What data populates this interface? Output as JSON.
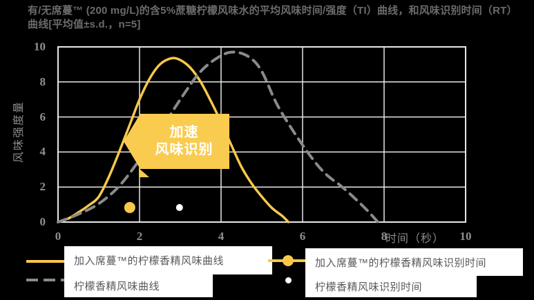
{
  "title": "有/无席蔓™ (200 mg/L)的含5%蔗糖柠檬风味水的平均风味时间/强度（TI）曲线，和风味识别时间（RT）曲线[平均值±s.d.，n=5]",
  "colors": {
    "background": "#000000",
    "accent_yellow": "#F9C84B",
    "banner_yellow": "#F9CB4F",
    "curve_gray": "#8A8A8A",
    "grid": "#E8E8E8",
    "tick_text": "#8F8F8F",
    "title_text": "#6B6B6B",
    "legend_text": "#595959"
  },
  "chart_data": {
    "type": "line",
    "title": "有/无席蔓™ (200 mg/L)的含5%蔗糖柠檬风味水的平均风味时间/强度（TI）曲线，和风味识别时间（RT）曲线[平均值±s.d.，n=5]",
    "xlabel": "时间（秒）",
    "ylabel": "风味强度量",
    "xlim": [
      0,
      10
    ],
    "ylim": [
      0,
      10
    ],
    "xticks": [
      0,
      2,
      4,
      6,
      8,
      10
    ],
    "yticks": [
      0,
      2,
      4,
      6,
      8,
      10
    ],
    "grid": true,
    "legend_position": "bottom",
    "annotation": {
      "lines": [
        "加速",
        "风味识别"
      ],
      "shape": "left-arrow-banner",
      "color": "#F9CB4F"
    },
    "series": [
      {
        "id": "simon-ti-curve",
        "name": "加入席蔓™的柠檬香精风味曲线",
        "type": "line",
        "style": "solid",
        "color": "#F9C84B",
        "points": [
          [
            0,
            0
          ],
          [
            0.25,
            0.2
          ],
          [
            0.5,
            0.55
          ],
          [
            0.75,
            0.95
          ],
          [
            1,
            1.45
          ],
          [
            1.25,
            2.6
          ],
          [
            1.5,
            4.0
          ],
          [
            1.75,
            5.5
          ],
          [
            2,
            7.0
          ],
          [
            2.25,
            8.2
          ],
          [
            2.5,
            9.0
          ],
          [
            2.78,
            9.35
          ],
          [
            3,
            9.25
          ],
          [
            3.25,
            8.8
          ],
          [
            3.5,
            8.0
          ],
          [
            3.75,
            6.9
          ],
          [
            4,
            5.7
          ],
          [
            4.25,
            4.4
          ],
          [
            4.5,
            3.15
          ],
          [
            4.75,
            2.2
          ],
          [
            5,
            1.45
          ],
          [
            5.25,
            0.8
          ],
          [
            5.5,
            0.35
          ],
          [
            5.65,
            0
          ]
        ]
      },
      {
        "id": "control-ti-curve",
        "name": "柠檬香精风味曲线",
        "type": "line",
        "style": "dashed",
        "color": "#8A8A8A",
        "points": [
          [
            0,
            0
          ],
          [
            0.5,
            0.45
          ],
          [
            1,
            1.05
          ],
          [
            1.5,
            2.05
          ],
          [
            2,
            3.55
          ],
          [
            2.5,
            5.2
          ],
          [
            3,
            7.0
          ],
          [
            3.5,
            8.6
          ],
          [
            4,
            9.5
          ],
          [
            4.35,
            9.7
          ],
          [
            4.7,
            9.4
          ],
          [
            5,
            8.6
          ],
          [
            5.4,
            6.6
          ],
          [
            6,
            4.4
          ],
          [
            6.5,
            2.9
          ],
          [
            7,
            1.95
          ],
          [
            7.5,
            0.87
          ],
          [
            7.85,
            0
          ]
        ]
      },
      {
        "id": "simon-rt-marker",
        "name": "加入席蔓™的柠檬香精风味识别时间",
        "type": "point",
        "color": "#F9C84B",
        "radius": 8,
        "points": [
          [
            1.76,
            0.83
          ]
        ]
      },
      {
        "id": "control-rt-marker",
        "name": "柠檬香精风味识别时间",
        "type": "point",
        "color": "#FFFFFF",
        "radius": 5,
        "points": [
          [
            2.98,
            0.83
          ]
        ]
      }
    ]
  },
  "legend": {
    "left_rows": 2,
    "right_rows": 2
  }
}
